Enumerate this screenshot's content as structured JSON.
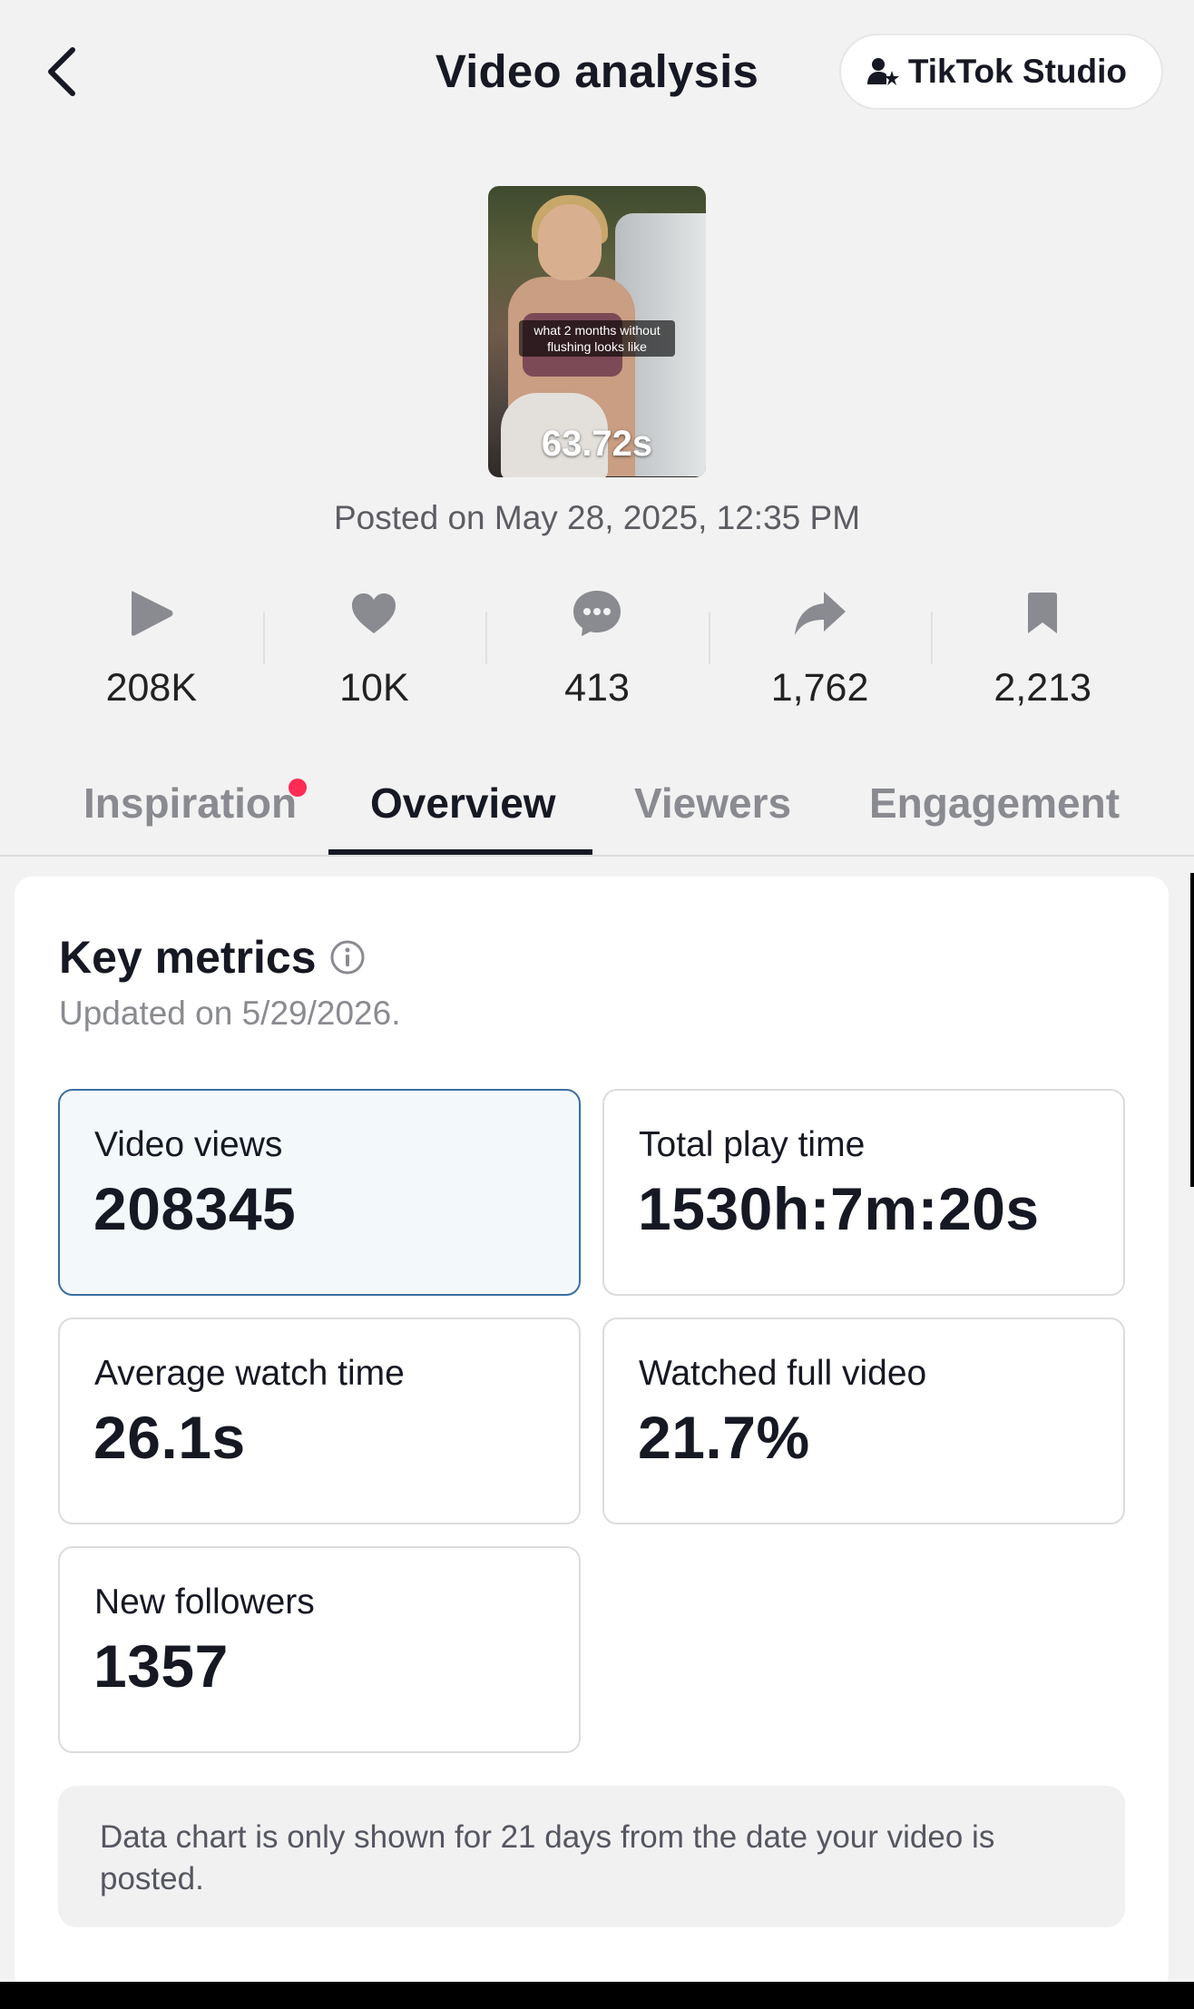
{
  "header": {
    "title": "Video analysis",
    "studio_button": "TikTok Studio"
  },
  "video": {
    "caption": "what 2 months without flushing looks like",
    "duration": "63.72s",
    "posted": "Posted on May 28, 2025, 12:35 PM"
  },
  "stats": [
    {
      "icon": "play-icon",
      "value": "208K"
    },
    {
      "icon": "heart-icon",
      "value": "10K"
    },
    {
      "icon": "comment-icon",
      "value": "413"
    },
    {
      "icon": "share-icon",
      "value": "1,762"
    },
    {
      "icon": "bookmark-icon",
      "value": "2,213"
    }
  ],
  "tabs": [
    {
      "label": "Inspiration",
      "has_notification": true
    },
    {
      "label": "Overview",
      "active": true
    },
    {
      "label": "Viewers"
    },
    {
      "label": "Engagement"
    }
  ],
  "key_metrics": {
    "title": "Key metrics",
    "updated": "Updated on 5/29/2026.",
    "items": [
      {
        "label": "Video views",
        "value": "208345",
        "selected": true
      },
      {
        "label": "Total play time",
        "value": "1530h:7m:20s"
      },
      {
        "label": "Average watch time",
        "value": "26.1s"
      },
      {
        "label": "Watched full video",
        "value": "21.7%"
      },
      {
        "label": "New followers",
        "value": "1357"
      }
    ],
    "notice": "Data chart is only shown for 21 days from the date your video is posted."
  },
  "colors": {
    "background": "#f2f2f2",
    "notification_dot": "#fe2c55",
    "selected_border": "#3b6fa0",
    "selected_fill": "#f3f8fb"
  }
}
